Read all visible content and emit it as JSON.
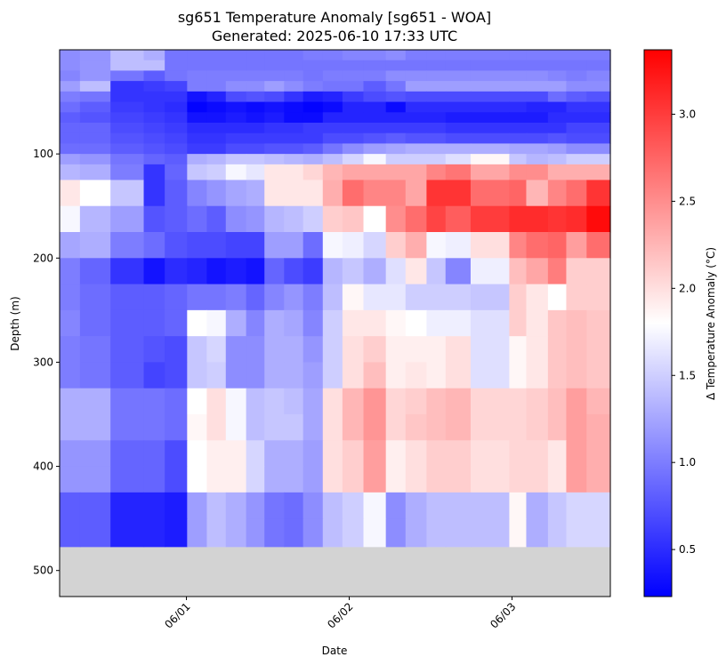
{
  "chart_data": {
    "type": "heatmap",
    "title": "sg651 Temperature Anomaly [sg651 - WOA]",
    "subtitle": "Generated: 2025-06-10 17:33 UTC",
    "xlabel": "Date",
    "ylabel": "Depth (m)",
    "x_tick_labels": [
      "06/01",
      "06/02",
      "06/03"
    ],
    "x_tick_values_hours": [
      0,
      24,
      48
    ],
    "x_range_hours": [
      -18.7,
      62.5
    ],
    "y_tick_labels": [
      "100",
      "200",
      "300",
      "400",
      "500"
    ],
    "y_tick_values": [
      100,
      200,
      300,
      400,
      500
    ],
    "y_range": [
      525,
      0
    ],
    "y_inverted": true,
    "colorbar": {
      "label": "Δ Temperature Anomaly (°C)",
      "range": [
        0.23,
        3.37
      ],
      "tick_labels": [
        "0.5",
        "1.0",
        "1.5",
        "2.0",
        "2.5",
        "3.0"
      ],
      "tick_values": [
        0.5,
        1.0,
        1.5,
        2.0,
        2.5,
        3.0
      ],
      "colormap": "bwr",
      "center": 1.8,
      "colors": {
        "min": "#0000ff",
        "center": "#ffffff",
        "max": "#ff0000"
      }
    },
    "no_data_color": "#d3d3d3",
    "no_data_depth_start": 477,
    "x_cell_edges_hours": [
      -18.7,
      -15.7,
      -11.2,
      -6.3,
      -3.2,
      0.1,
      3.0,
      5.8,
      8.8,
      11.5,
      14.4,
      17.2,
      20.1,
      23.0,
      26.1,
      29.4,
      32.3,
      35.4,
      38.2,
      41.9,
      47.6,
      50.1,
      53.3,
      56.0,
      59.0,
      62.5
    ],
    "depth_bin_edges": [
      0,
      10,
      20,
      30,
      40,
      50,
      60,
      70,
      80,
      90,
      100,
      110,
      125,
      150,
      175,
      200,
      225,
      250,
      275,
      300,
      325,
      350,
      375,
      400,
      425,
      450,
      477
    ],
    "values": [
      [
        1.1,
        1.15,
        1.4,
        1.3,
        0.95,
        0.95,
        0.95,
        0.95,
        0.95,
        0.95,
        0.95,
        1.0,
        1.0,
        1.05,
        1.05,
        1.1,
        1.0,
        1.0,
        1.0,
        1.0,
        1.0,
        1.0,
        1.0,
        1.0,
        1.0
      ],
      [
        1.1,
        1.15,
        1.4,
        1.4,
        0.95,
        0.95,
        0.95,
        0.95,
        0.95,
        0.95,
        0.95,
        0.95,
        0.95,
        0.95,
        0.95,
        0.95,
        0.95,
        0.95,
        0.95,
        0.95,
        0.95,
        0.95,
        0.95,
        0.95,
        0.95
      ],
      [
        1.05,
        1.15,
        0.95,
        0.8,
        0.95,
        1.0,
        1.0,
        1.0,
        1.0,
        1.0,
        1.0,
        0.95,
        1.0,
        1.0,
        1.0,
        1.1,
        1.1,
        1.1,
        1.1,
        1.1,
        1.1,
        1.1,
        1.05,
        1.0,
        1.05
      ],
      [
        1.2,
        1.4,
        0.55,
        0.6,
        0.65,
        1.0,
        1.0,
        1.1,
        1.1,
        1.2,
        1.1,
        1.0,
        0.95,
        0.95,
        0.8,
        0.95,
        1.2,
        1.2,
        1.2,
        1.2,
        1.2,
        1.2,
        1.2,
        1.1,
        1.1
      ],
      [
        1.0,
        0.95,
        0.55,
        0.55,
        0.55,
        0.35,
        0.45,
        0.7,
        0.75,
        0.7,
        0.55,
        0.4,
        0.45,
        0.6,
        0.7,
        0.75,
        0.7,
        0.7,
        0.7,
        0.7,
        0.7,
        0.7,
        0.9,
        0.8,
        0.75
      ],
      [
        0.9,
        0.8,
        0.6,
        0.55,
        0.5,
        0.25,
        0.3,
        0.35,
        0.3,
        0.35,
        0.3,
        0.25,
        0.3,
        0.45,
        0.45,
        0.3,
        0.5,
        0.5,
        0.5,
        0.5,
        0.5,
        0.45,
        0.45,
        0.55,
        0.55
      ],
      [
        0.8,
        0.75,
        0.65,
        0.6,
        0.55,
        0.35,
        0.35,
        0.4,
        0.35,
        0.4,
        0.3,
        0.3,
        0.45,
        0.45,
        0.45,
        0.45,
        0.45,
        0.45,
        0.4,
        0.4,
        0.4,
        0.4,
        0.5,
        0.5,
        0.5
      ],
      [
        0.85,
        0.85,
        0.7,
        0.65,
        0.6,
        0.5,
        0.5,
        0.5,
        0.5,
        0.55,
        0.55,
        0.6,
        0.6,
        0.6,
        0.6,
        0.6,
        0.6,
        0.6,
        0.55,
        0.55,
        0.55,
        0.55,
        0.55,
        0.65,
        0.65
      ],
      [
        0.85,
        0.85,
        0.75,
        0.7,
        0.65,
        0.55,
        0.55,
        0.6,
        0.6,
        0.6,
        0.6,
        0.6,
        0.7,
        0.7,
        0.75,
        0.8,
        0.75,
        0.75,
        0.7,
        0.7,
        0.7,
        0.7,
        0.75,
        0.7,
        0.7
      ],
      [
        0.9,
        0.9,
        0.8,
        0.75,
        0.7,
        0.6,
        0.6,
        0.7,
        0.7,
        0.75,
        0.75,
        0.8,
        0.95,
        1.1,
        1.2,
        1.25,
        1.3,
        1.3,
        1.3,
        1.3,
        1.25,
        1.25,
        1.2,
        1.1,
        1.1
      ],
      [
        1.2,
        1.15,
        0.95,
        0.85,
        0.8,
        1.3,
        1.35,
        1.45,
        1.45,
        1.4,
        1.35,
        1.3,
        1.4,
        1.55,
        1.75,
        1.5,
        1.5,
        1.5,
        1.6,
        1.85,
        1.45,
        1.35,
        1.4,
        1.5,
        1.5
      ],
      [
        1.35,
        1.3,
        1.0,
        0.55,
        0.85,
        1.45,
        1.5,
        1.75,
        1.65,
        1.95,
        1.95,
        2.05,
        2.25,
        2.35,
        2.35,
        2.35,
        2.35,
        2.55,
        2.65,
        2.35,
        2.5,
        2.5,
        2.3,
        2.3,
        2.3
      ],
      [
        1.95,
        1.8,
        1.45,
        0.55,
        0.8,
        1.05,
        1.15,
        1.25,
        1.3,
        1.95,
        1.95,
        1.95,
        2.3,
        2.7,
        2.55,
        2.55,
        2.35,
        3.05,
        3.05,
        2.7,
        2.75,
        2.25,
        2.55,
        2.7,
        3.05
      ],
      [
        1.75,
        1.35,
        1.2,
        0.75,
        0.8,
        0.9,
        0.8,
        1.1,
        1.15,
        1.35,
        1.4,
        1.5,
        2.1,
        2.15,
        1.8,
        2.5,
        2.7,
        2.95,
        2.8,
        3.0,
        3.1,
        3.1,
        3.05,
        3.1,
        3.3
      ],
      [
        1.25,
        1.3,
        1.0,
        0.9,
        0.75,
        0.7,
        0.7,
        0.65,
        0.65,
        1.2,
        1.2,
        0.9,
        1.75,
        1.7,
        1.55,
        2.1,
        2.3,
        1.75,
        1.7,
        2.0,
        2.55,
        2.7,
        2.75,
        2.4,
        2.7
      ],
      [
        1.0,
        0.85,
        0.55,
        0.35,
        0.5,
        0.45,
        0.35,
        0.4,
        0.35,
        0.85,
        0.7,
        0.6,
        1.35,
        1.45,
        1.3,
        1.6,
        1.95,
        1.45,
        1.05,
        1.7,
        2.2,
        2.35,
        2.6,
        2.1,
        2.1
      ],
      [
        1.0,
        0.9,
        0.8,
        0.8,
        0.85,
        0.95,
        0.95,
        1.0,
        0.85,
        1.05,
        1.15,
        1.0,
        1.4,
        1.85,
        1.65,
        1.65,
        1.5,
        1.5,
        1.5,
        1.45,
        2.1,
        1.95,
        1.8,
        2.1,
        2.1
      ],
      [
        1.05,
        0.9,
        0.8,
        0.8,
        0.85,
        1.8,
        1.75,
        1.3,
        1.05,
        1.3,
        1.25,
        1.05,
        1.5,
        1.95,
        1.95,
        1.85,
        1.8,
        1.7,
        1.7,
        1.6,
        2.1,
        1.95,
        2.15,
        2.2,
        2.15
      ],
      [
        1.0,
        0.95,
        0.8,
        0.75,
        0.7,
        1.45,
        1.55,
        1.1,
        1.1,
        1.3,
        1.3,
        1.15,
        1.5,
        2.0,
        2.1,
        1.9,
        1.9,
        1.9,
        2.0,
        1.6,
        1.85,
        1.95,
        2.15,
        2.2,
        2.15
      ],
      [
        1.0,
        0.95,
        0.8,
        0.65,
        0.7,
        1.45,
        1.5,
        1.1,
        1.1,
        1.3,
        1.3,
        1.2,
        1.5,
        2.0,
        2.2,
        1.9,
        1.95,
        1.9,
        2.0,
        1.6,
        1.85,
        1.95,
        2.15,
        2.2,
        2.15
      ],
      [
        1.3,
        1.3,
        0.95,
        0.95,
        0.9,
        1.8,
        2.0,
        1.75,
        1.4,
        1.45,
        1.4,
        1.25,
        2.0,
        2.25,
        2.45,
        2.05,
        2.1,
        2.2,
        2.25,
        2.05,
        2.05,
        2.1,
        2.2,
        2.4,
        2.25
      ],
      [
        1.3,
        1.3,
        0.95,
        0.95,
        0.9,
        1.85,
        2.0,
        1.75,
        1.4,
        1.45,
        1.45,
        1.25,
        2.0,
        2.25,
        2.45,
        2.05,
        2.15,
        2.2,
        2.25,
        2.05,
        2.05,
        2.1,
        2.2,
        2.4,
        2.3
      ],
      [
        1.15,
        1.15,
        0.85,
        0.85,
        0.7,
        1.8,
        1.9,
        1.9,
        1.55,
        1.3,
        1.3,
        1.2,
        2.0,
        2.1,
        2.4,
        1.9,
        2.0,
        2.1,
        2.1,
        2.0,
        2.05,
        2.05,
        1.95,
        2.4,
        2.3
      ],
      [
        1.15,
        1.15,
        0.85,
        0.85,
        0.7,
        1.8,
        1.9,
        1.9,
        1.55,
        1.3,
        1.3,
        1.2,
        2.0,
        2.1,
        2.4,
        1.9,
        2.0,
        2.1,
        2.1,
        2.0,
        2.05,
        2.05,
        1.95,
        2.4,
        2.3
      ],
      [
        0.8,
        0.8,
        0.45,
        0.45,
        0.4,
        1.2,
        1.4,
        1.3,
        1.15,
        0.95,
        0.9,
        1.1,
        1.4,
        1.5,
        1.75,
        1.1,
        1.3,
        1.4,
        1.4,
        1.4,
        1.85,
        1.3,
        1.45,
        1.55,
        1.55
      ],
      [
        0.8,
        0.8,
        0.45,
        0.45,
        0.4,
        1.2,
        1.4,
        1.3,
        1.15,
        0.95,
        0.9,
        1.1,
        1.4,
        1.5,
        1.75,
        1.1,
        1.3,
        1.4,
        1.4,
        1.4,
        1.85,
        1.3,
        1.45,
        1.55,
        1.55
      ]
    ]
  }
}
